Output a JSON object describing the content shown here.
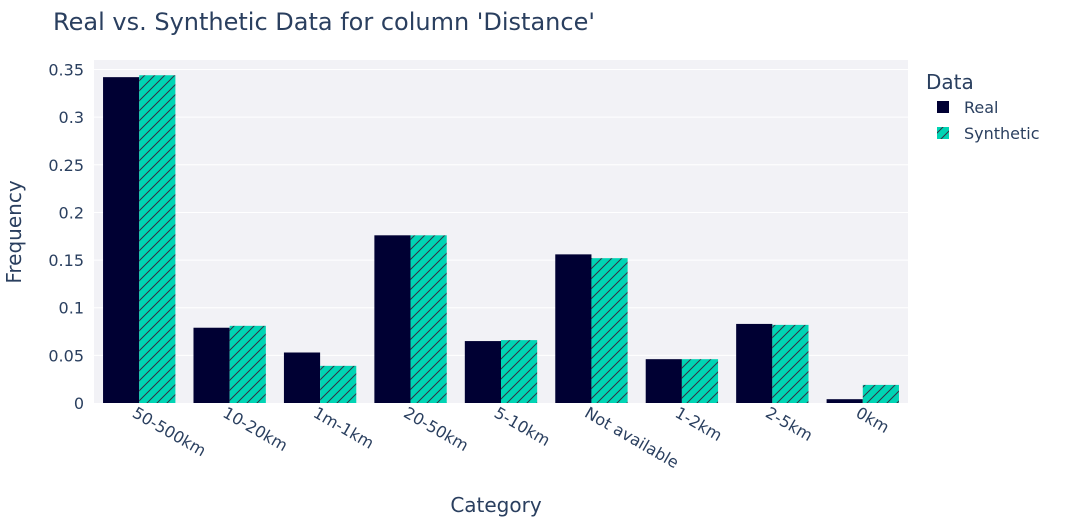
{
  "chart_data": {
    "type": "bar",
    "title": "Real vs. Synthetic Data for column 'Distance'",
    "xlabel": "Category",
    "ylabel": "Frequency",
    "categories": [
      "50-500km",
      "10-20km",
      "1m-1km",
      "20-50km",
      "5-10km",
      "Not available",
      "1-2km",
      "2-5km",
      "0km"
    ],
    "series": [
      {
        "name": "Real",
        "color": "#000033",
        "pattern": "none",
        "values": [
          0.342,
          0.079,
          0.053,
          0.176,
          0.065,
          0.156,
          0.046,
          0.083,
          0.004
        ]
      },
      {
        "name": "Synthetic",
        "color": "#00d4b4",
        "pattern": "diagonal-hatch",
        "values": [
          0.344,
          0.081,
          0.039,
          0.176,
          0.066,
          0.152,
          0.046,
          0.082,
          0.019
        ]
      }
    ],
    "ylim": [
      0,
      0.36
    ],
    "yticks": [
      0,
      0.05,
      0.1,
      0.15,
      0.2,
      0.25,
      0.3,
      0.35
    ],
    "ytick_labels": [
      "0",
      "0.05",
      "0.1",
      "0.15",
      "0.2",
      "0.25",
      "0.3",
      "0.35"
    ],
    "grid": true,
    "legend_title": "Data",
    "legend_position": "top-right",
    "plot_background": "#f2f2f6"
  }
}
